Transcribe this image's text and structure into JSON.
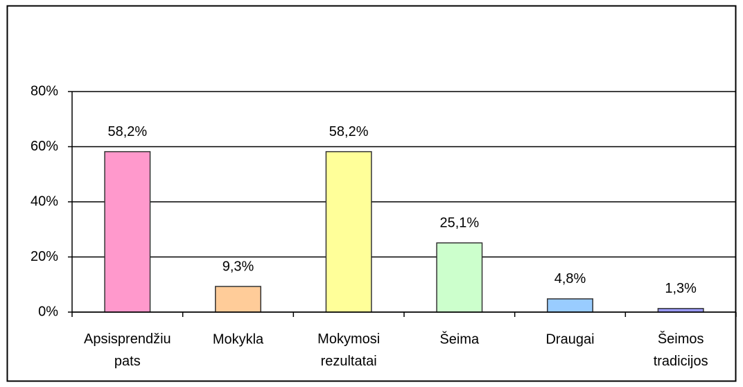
{
  "chart_data": {
    "type": "bar",
    "categories": [
      "Apsisprendžiu pats",
      "Mokykla",
      "Mokymosi rezultatai",
      "Šeima",
      "Draugai",
      "Šeimos tradicijos"
    ],
    "values": [
      58.2,
      9.3,
      58.2,
      25.1,
      4.8,
      1.3
    ],
    "value_labels": [
      "58,2%",
      "9,3%",
      "58,2%",
      "25,1%",
      "4,8%",
      "1,3%"
    ],
    "colors": [
      "#ff99cc",
      "#ffcc99",
      "#ffff99",
      "#ccffcc",
      "#99ccff",
      "#9999ff"
    ],
    "ylim": [
      0,
      80
    ],
    "yticks": [
      {
        "value": 0,
        "label": "0%"
      },
      {
        "value": 20,
        "label": "20%"
      },
      {
        "value": 40,
        "label": "40%"
      },
      {
        "value": 60,
        "label": "60%"
      },
      {
        "value": 80,
        "label": "80%"
      }
    ],
    "grid": true
  }
}
